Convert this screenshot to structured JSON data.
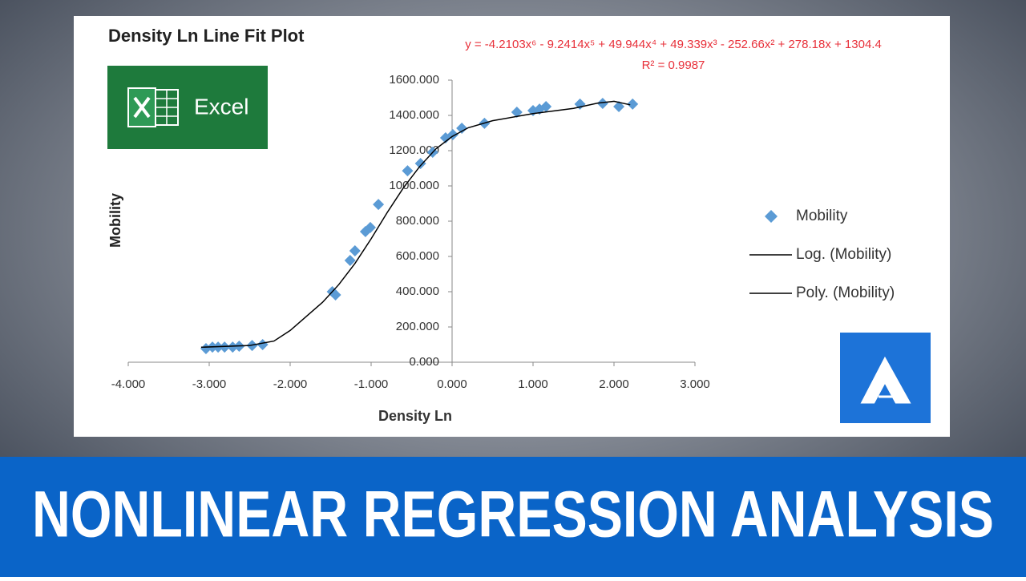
{
  "chart_data": {
    "type": "scatter",
    "title": "Density Ln Line Fit  Plot",
    "annotations": [
      "y = -4.2103x⁶ - 9.2414x⁵ + 49.944x⁴ + 49.339x³ - 252.66x² + 278.18x + 1304.4",
      "R² = 0.9987"
    ],
    "x_label": "Density Ln",
    "y_label": "Mobility",
    "xlim": [
      -4,
      3
    ],
    "xticks": [
      {
        "value": -4,
        "label": "-4.000"
      },
      {
        "value": -3,
        "label": "-3.000"
      },
      {
        "value": -2,
        "label": "-2.000"
      },
      {
        "value": -1,
        "label": "-1.000"
      },
      {
        "value": 0,
        "label": "0.000"
      },
      {
        "value": 1,
        "label": "1.000"
      },
      {
        "value": 2,
        "label": "2.000"
      },
      {
        "value": 3,
        "label": "3.000"
      }
    ],
    "ylim": [
      0,
      1600
    ],
    "yticks": [
      {
        "value": 0,
        "label": "0.000"
      },
      {
        "value": 200,
        "label": "200.000"
      },
      {
        "value": 400,
        "label": "400.000"
      },
      {
        "value": 600,
        "label": "600.000"
      },
      {
        "value": 800,
        "label": "800.000"
      },
      {
        "value": 1000,
        "label": "1000.000"
      },
      {
        "value": 1200,
        "label": "1200.000"
      },
      {
        "value": 1400,
        "label": "1400.000"
      },
      {
        "value": 1600,
        "label": "1600.000"
      }
    ],
    "series": [
      {
        "name": "Mobility",
        "color": "#5b9bd5",
        "marker": "diamond",
        "x": [
          -3.04,
          -2.96,
          -2.89,
          -2.81,
          -2.71,
          -2.63,
          -2.47,
          -2.34,
          -1.48,
          -1.44,
          -1.26,
          -1.2,
          -1.07,
          -1.01,
          -0.91,
          -0.55,
          -0.39,
          -0.24,
          -0.08,
          0.01,
          0.12,
          0.4,
          0.8,
          1.0,
          1.08,
          1.16,
          1.58,
          1.86,
          2.06,
          2.23
        ],
        "values": [
          77,
          86,
          86,
          86,
          86,
          91,
          95,
          100,
          400,
          382,
          577,
          632,
          741,
          764,
          895,
          1086,
          1127,
          1191,
          1273,
          1291,
          1327,
          1355,
          1418,
          1427,
          1436,
          1450,
          1464,
          1468,
          1450,
          1464
        ]
      },
      {
        "name": "Log. (Mobility)",
        "color": "#000000",
        "marker": "line"
      },
      {
        "name": "Poly. (Mobility)",
        "color": "#000000",
        "marker": "line",
        "x": [
          -3.1,
          -2.5,
          -2.2,
          -2.0,
          -1.8,
          -1.6,
          -1.4,
          -1.2,
          -1.0,
          -0.8,
          -0.6,
          -0.4,
          -0.2,
          0,
          0.2,
          0.5,
          1.0,
          1.5,
          1.8,
          2.0,
          2.2
        ],
        "values": [
          85,
          95,
          120,
          180,
          260,
          340,
          440,
          560,
          700,
          850,
          990,
          1110,
          1210,
          1280,
          1330,
          1370,
          1410,
          1440,
          1470,
          1480,
          1460
        ]
      }
    ]
  },
  "logo": {
    "text": "Excel"
  },
  "banner": {
    "title": "NONLINEAR REGRESSION ANALYSIS"
  }
}
